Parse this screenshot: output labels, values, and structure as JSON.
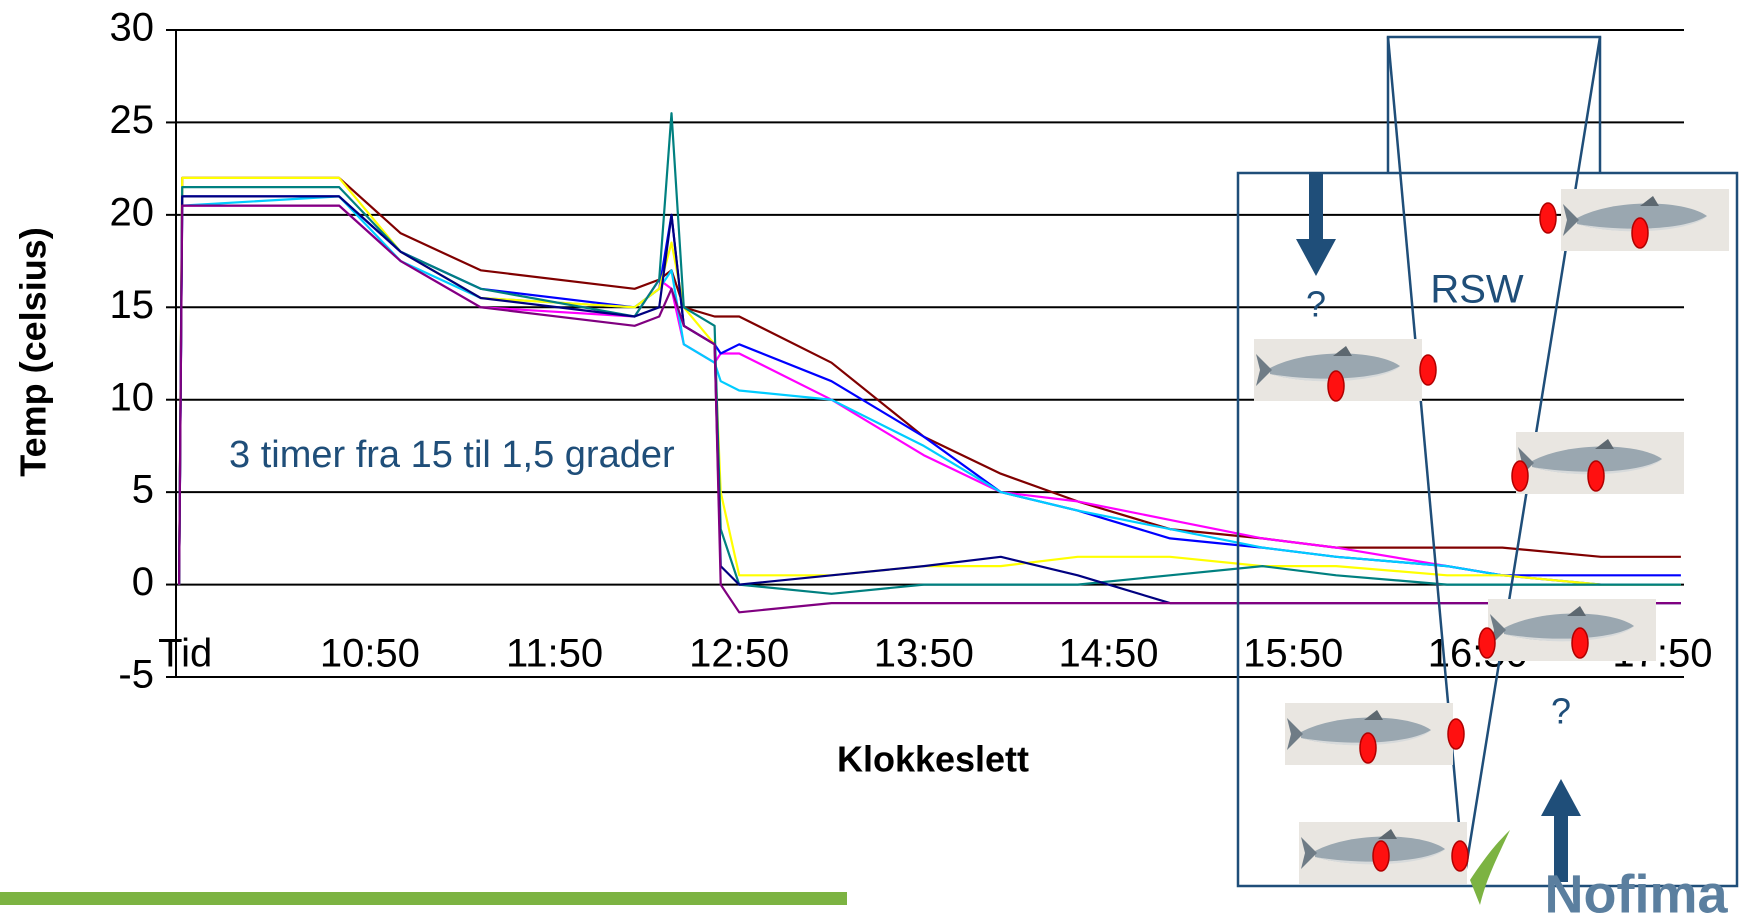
{
  "chart_data": {
    "type": "line",
    "ylabel": "Temp (celsius)",
    "xlabel": "Klokkeslett",
    "xlim": [
      587,
      1077
    ],
    "ylim": [
      -5,
      30
    ],
    "xticks": [
      {
        "value": 590,
        "label": "Tid"
      },
      {
        "value": 650,
        "label": "10:50"
      },
      {
        "value": 710,
        "label": "11:50"
      },
      {
        "value": 770,
        "label": "12:50"
      },
      {
        "value": 830,
        "label": "13:50"
      },
      {
        "value": 890,
        "label": "14:50"
      },
      {
        "value": 950,
        "label": "15:50"
      },
      {
        "value": 1010,
        "label": "16:50"
      },
      {
        "value": 1070,
        "label": "17:50"
      }
    ],
    "yticks": [
      -5,
      0,
      5,
      10,
      15,
      20,
      25,
      30
    ],
    "grid": true,
    "x": [
      588,
      589,
      640,
      660,
      686,
      736,
      744,
      748,
      752,
      762,
      764,
      770,
      800,
      830,
      855,
      880,
      910,
      940,
      964,
      1000,
      1018,
      1050,
      1076
    ],
    "series": [
      {
        "color": "#800000",
        "values": [
          0,
          22,
          22,
          19,
          17,
          16,
          16.5,
          17,
          15,
          14.5,
          14.5,
          14.5,
          12,
          8,
          6,
          4.5,
          3,
          2.5,
          2,
          2,
          2,
          1.5,
          1.5
        ]
      },
      {
        "color": "#ff00ff",
        "values": [
          0,
          20.5,
          20.5,
          17.5,
          15,
          14.5,
          16.5,
          16,
          13,
          12,
          12.5,
          12.5,
          10,
          7,
          5,
          4.5,
          3.5,
          2.5,
          2,
          1,
          0.5,
          0,
          0
        ]
      },
      {
        "color": "#0000ff",
        "values": [
          0,
          21,
          21,
          18,
          16,
          15,
          16,
          20,
          14,
          13,
          12.5,
          13,
          11,
          8,
          5,
          4,
          2.5,
          2,
          1.5,
          1,
          0.5,
          0.5,
          0.5
        ]
      },
      {
        "color": "#00ccff",
        "values": [
          0,
          20.5,
          21,
          17.5,
          15.5,
          15,
          16,
          17,
          13,
          12,
          11,
          10.5,
          10,
          7.5,
          5,
          4,
          3,
          2,
          1.5,
          1,
          0.5,
          0,
          0
        ]
      },
      {
        "color": "#ffff00",
        "values": [
          0,
          22,
          22,
          18,
          15.5,
          15,
          16,
          18.5,
          15,
          13,
          5,
          0.5,
          0.5,
          1,
          1,
          1.5,
          1.5,
          1,
          1,
          0.5,
          0.5,
          0,
          0
        ]
      },
      {
        "color": "#008080",
        "values": [
          0,
          21.5,
          21.5,
          18,
          16,
          14.5,
          16.5,
          25.5,
          15,
          14,
          3,
          0,
          -0.5,
          0,
          0,
          0,
          0.5,
          1,
          0.5,
          0,
          0,
          0,
          0
        ]
      },
      {
        "color": "#000080",
        "values": [
          0,
          21,
          21,
          18,
          15.5,
          14.5,
          15,
          20,
          14,
          13,
          1,
          0,
          0.5,
          1,
          1.5,
          0.5,
          -1,
          -1,
          -1,
          -1,
          -1,
          -1,
          -1
        ]
      },
      {
        "color": "#800080",
        "values": [
          0,
          20.5,
          20.5,
          17.5,
          15,
          14,
          14.5,
          16,
          14,
          13,
          0,
          -1.5,
          -1,
          -1,
          -1,
          -1,
          -1,
          -1,
          -1,
          -1,
          -1,
          -1,
          -1
        ]
      }
    ],
    "annotations": [
      "3 timer fra 15 til 1,5 grader",
      "RSW",
      "?",
      "?"
    ],
    "logo": "Nofima"
  }
}
